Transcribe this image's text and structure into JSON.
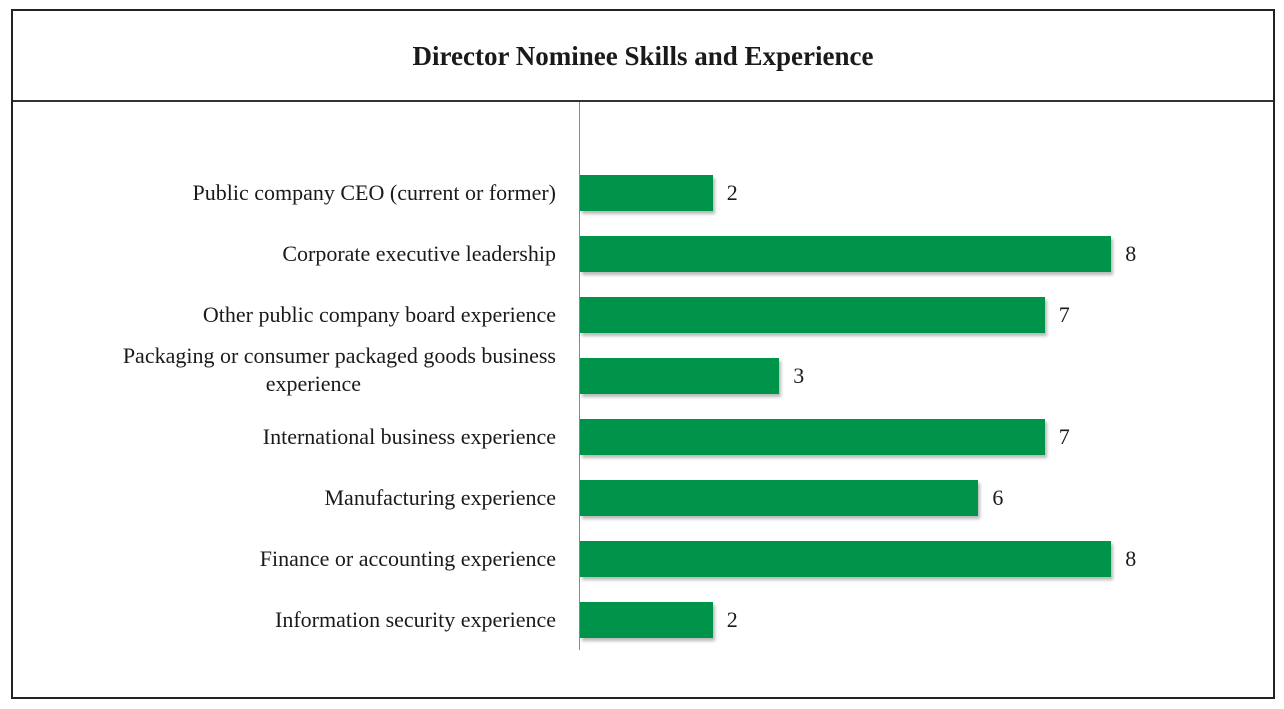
{
  "chart_data": {
    "type": "bar",
    "orientation": "horizontal",
    "title": "Director Nominee Skills and Experience",
    "xlabel": "",
    "ylabel": "",
    "categories": [
      "Public company CEO (current or former)",
      "Corporate executive leadership",
      "Other public company board experience",
      "Packaging or consumer packaged goods business experience",
      "International business experience",
      "Manufacturing experience",
      "Finance or accounting experience",
      "Information security experience"
    ],
    "values": [
      2,
      8,
      7,
      3,
      7,
      6,
      8,
      2
    ],
    "xlim": [
      0,
      8
    ],
    "grid": false,
    "legend": "none",
    "data_labels": true,
    "bar_color": "#00934A"
  },
  "labels_display": [
    [
      "Public company CEO (current or former)"
    ],
    [
      "Corporate executive leadership"
    ],
    [
      "Other public company board experience"
    ],
    [
      "Packaging or consumer packaged goods business",
      "experience"
    ],
    [
      "International business experience"
    ],
    [
      "Manufacturing experience"
    ],
    [
      "Finance or accounting experience"
    ],
    [
      "Information security experience"
    ]
  ]
}
